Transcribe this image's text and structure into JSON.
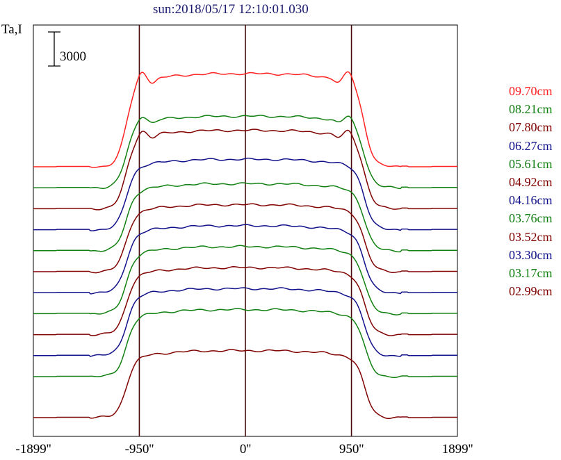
{
  "title": "sun:2018/05/17 12:10:01.030",
  "chart_data": {
    "type": "line",
    "ylabel": "Ta,I",
    "scale_bar": {
      "value": 3000,
      "label": "3000"
    },
    "xlim": [
      -1899,
      1899
    ],
    "xticks": [
      {
        "value": -1899,
        "label": "-1899''"
      },
      {
        "value": -950,
        "label": "-950''"
      },
      {
        "value": 0,
        "label": "0''"
      },
      {
        "value": 950,
        "label": "950''"
      },
      {
        "value": 1899,
        "label": "1899''"
      }
    ],
    "reference_lines_x": [
      -950,
      0,
      950
    ],
    "grid": false,
    "legend_placement": "right",
    "limb_brightening_visible": [
      true,
      true,
      true,
      false,
      false,
      false,
      false,
      false,
      false,
      false,
      false,
      false
    ],
    "series": [
      {
        "name": "09.70cm",
        "color": "#ff2020",
        "background_level": 2000,
        "disk_level": 10200
      },
      {
        "name": "08.21cm",
        "color": "#108010",
        "background_level": 2000,
        "disk_level": 8300
      },
      {
        "name": "07.80cm",
        "color": "#800000",
        "background_level": 1300,
        "disk_level": 8200
      },
      {
        "name": "06.27cm",
        "color": "#10108a",
        "background_level": 1300,
        "disk_level": 7500
      },
      {
        "name": "05.61cm",
        "color": "#108010",
        "background_level": 1300,
        "disk_level": 7200
      },
      {
        "name": "04.92cm",
        "color": "#800000",
        "background_level": 1300,
        "disk_level": 7200
      },
      {
        "name": "04.16cm",
        "color": "#10108a",
        "background_level": 1300,
        "disk_level": 7200
      },
      {
        "name": "03.76cm",
        "color": "#108010",
        "background_level": 1300,
        "disk_level": 7200
      },
      {
        "name": "03.52cm",
        "color": "#800000",
        "background_level": 1300,
        "disk_level": 7200
      },
      {
        "name": "03.30cm",
        "color": "#10108a",
        "background_level": 1300,
        "disk_level": 7200
      },
      {
        "name": "03.17cm",
        "color": "#108010",
        "background_level": 1300,
        "disk_level": 7200
      },
      {
        "name": "02.99cm",
        "color": "#800000",
        "background_level": 1300,
        "disk_level": 7200
      }
    ]
  }
}
